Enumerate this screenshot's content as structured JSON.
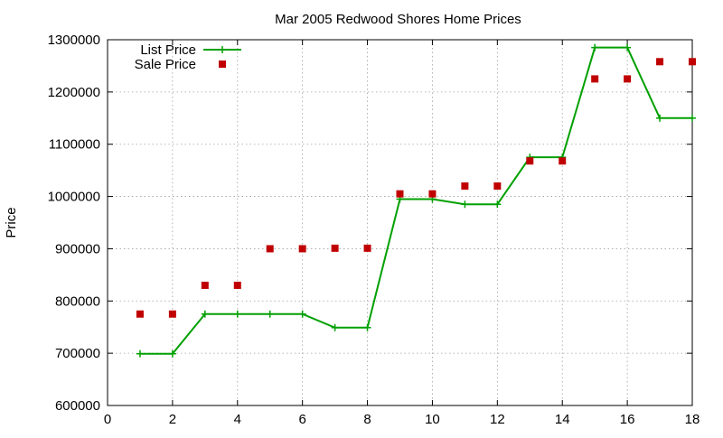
{
  "chart_data": {
    "type": "line",
    "title": "Mar 2005 Redwood Shores Home Prices",
    "xlabel": "",
    "ylabel": "Price",
    "xlim": [
      0,
      18
    ],
    "ylim": [
      600000,
      1300000
    ],
    "x_ticks": [
      0,
      2,
      4,
      6,
      8,
      10,
      12,
      14,
      16,
      18
    ],
    "y_ticks": [
      600000,
      700000,
      800000,
      900000,
      1000000,
      1100000,
      1200000,
      1300000
    ],
    "grid": true,
    "legend_position": "top-left",
    "series": [
      {
        "name": "List Price",
        "style": "line-with-plus-markers",
        "color": "#00a000",
        "x": [
          1,
          2,
          3,
          4,
          5,
          6,
          7,
          8,
          9,
          10,
          11,
          12,
          13,
          14,
          15,
          16,
          17,
          18
        ],
        "values": [
          699000,
          699000,
          775000,
          775000,
          775000,
          775000,
          749000,
          749000,
          995000,
          995000,
          985000,
          985000,
          1075000,
          1075000,
          1285000,
          1285000,
          1150000,
          1150000
        ]
      },
      {
        "name": "Sale Price",
        "style": "square-markers",
        "color": "#c00000",
        "x": [
          1,
          2,
          3,
          4,
          5,
          6,
          7,
          8,
          9,
          10,
          11,
          12,
          13,
          14,
          15,
          16,
          17,
          18
        ],
        "values": [
          775000,
          775000,
          830000,
          830000,
          900000,
          900000,
          901000,
          901000,
          1005000,
          1005000,
          1020000,
          1020000,
          1068000,
          1068000,
          1225000,
          1225000,
          1258000,
          1258000
        ]
      }
    ]
  }
}
